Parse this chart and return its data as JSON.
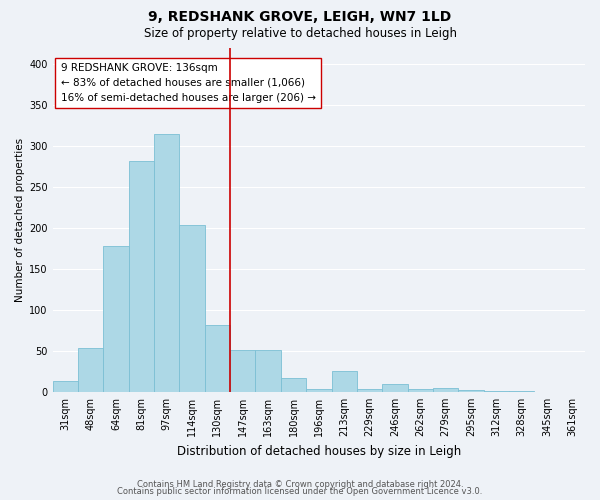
{
  "title": "9, REDSHANK GROVE, LEIGH, WN7 1LD",
  "subtitle": "Size of property relative to detached houses in Leigh",
  "xlabel": "Distribution of detached houses by size in Leigh",
  "ylabel": "Number of detached properties",
  "bar_labels": [
    "31sqm",
    "48sqm",
    "64sqm",
    "81sqm",
    "97sqm",
    "114sqm",
    "130sqm",
    "147sqm",
    "163sqm",
    "180sqm",
    "196sqm",
    "213sqm",
    "229sqm",
    "246sqm",
    "262sqm",
    "279sqm",
    "295sqm",
    "312sqm",
    "328sqm",
    "345sqm",
    "361sqm"
  ],
  "bar_values": [
    13,
    54,
    178,
    281,
    315,
    203,
    82,
    51,
    51,
    17,
    4,
    25,
    4,
    10,
    4,
    5,
    2,
    1,
    1,
    0,
    0
  ],
  "bar_color": "#add8e6",
  "bar_edge_color": "#7bbfd4",
  "vline_color": "#cc0000",
  "annotation_line1": "9 REDSHANK GROVE: 136sqm",
  "annotation_line2": "← 83% of detached houses are smaller (1,066)",
  "annotation_line3": "16% of semi-detached houses are larger (206) →",
  "annotation_box_color": "#ffffff",
  "annotation_box_edge_color": "#cc0000",
  "ylim": [
    0,
    420
  ],
  "yticks": [
    0,
    50,
    100,
    150,
    200,
    250,
    300,
    350,
    400
  ],
  "footnote1": "Contains HM Land Registry data © Crown copyright and database right 2024.",
  "footnote2": "Contains public sector information licensed under the Open Government Licence v3.0.",
  "background_color": "#eef2f7",
  "title_fontsize": 10,
  "subtitle_fontsize": 8.5,
  "xlabel_fontsize": 8.5,
  "ylabel_fontsize": 7.5,
  "tick_fontsize": 7,
  "annotation_fontsize": 7.5,
  "footnote_fontsize": 6
}
